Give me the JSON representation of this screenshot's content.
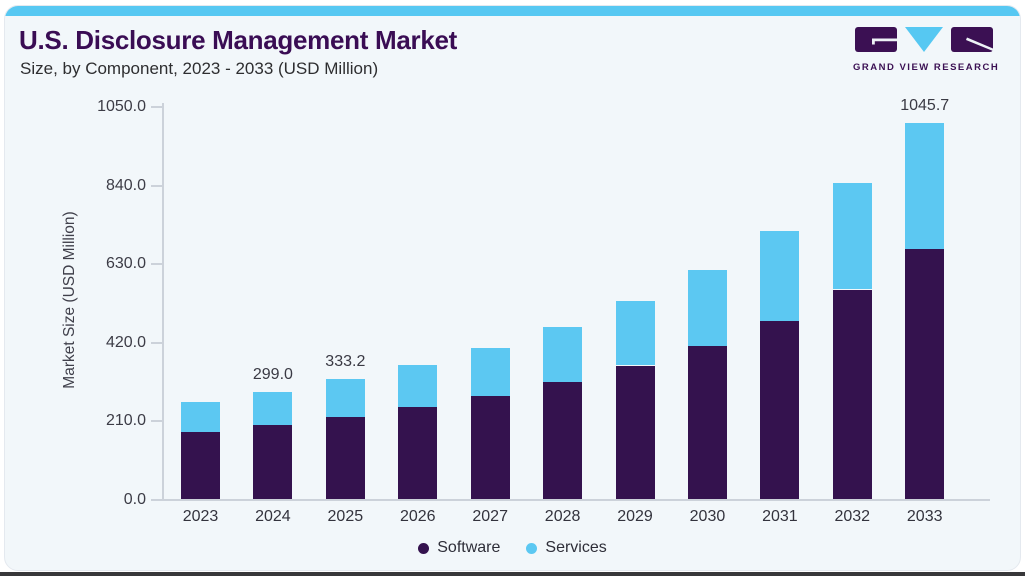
{
  "header": {
    "title": "U.S. Disclosure Management Market",
    "subtitle": "Size, by Component, 2023 - 2033 (USD Million)"
  },
  "brand": {
    "name": "GRAND VIEW RESEARCH"
  },
  "chart_data": {
    "type": "bar",
    "stacked": true,
    "title": "U.S. Disclosure Management Market",
    "subtitle": "Size, by Component, 2023 - 2033 (USD Million)",
    "xlabel": "",
    "ylabel": "Market Size (USD Million)",
    "ylim": [
      0,
      1050
    ],
    "ytick_labels": [
      "0.0",
      "210.0",
      "420.0",
      "630.0",
      "840.0",
      "1050.0"
    ],
    "grid": false,
    "legend_position": "bottom",
    "categories": [
      "2023",
      "2024",
      "2025",
      "2026",
      "2027",
      "2028",
      "2029",
      "2030",
      "2031",
      "2032",
      "2033"
    ],
    "series": [
      {
        "name": "Software",
        "color": "#34124e",
        "values": [
          187.5,
          205.7,
          229.0,
          256.5,
          288.5,
          326.0,
          372.0,
          427.0,
          496.5,
          583.0,
          695.0
        ]
      },
      {
        "name": "Services",
        "color": "#5cc8f2",
        "values": [
          83.0,
          93.3,
          104.2,
          117.5,
          132.5,
          154.0,
          180.0,
          211.0,
          249.5,
          295.0,
          350.7
        ]
      }
    ],
    "bar_value_labels": [
      "",
      "299.0",
      "333.2",
      "",
      "",
      "",
      "",
      "",
      "",
      "",
      "1045.7"
    ]
  },
  "colors": {
    "accent_top_bar": "#57c8f2",
    "card_background": "#f2f7fa",
    "title_text": "#3a0d54",
    "software": "#34124e",
    "services": "#5cc8f2"
  }
}
